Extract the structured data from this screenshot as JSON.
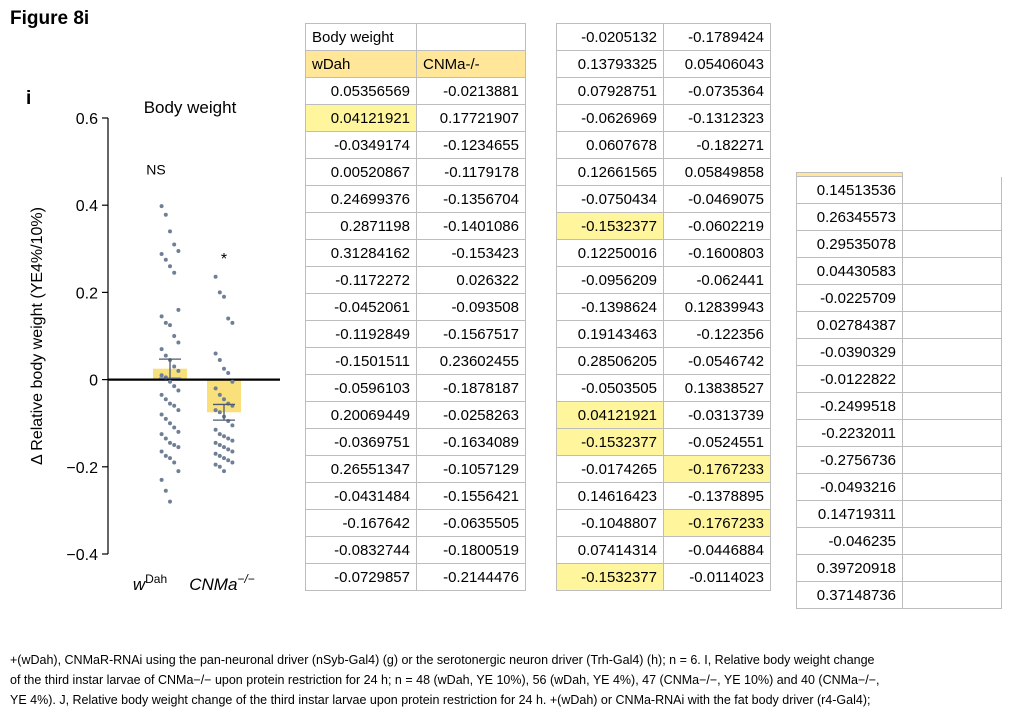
{
  "figure_title": "Figure 8i",
  "chart_data": {
    "type": "bar",
    "panel_label": "i",
    "title": "Body weight",
    "ylabel": "Δ Relative body weight (YE4%/10%)",
    "ylim": [
      -0.4,
      0.6
    ],
    "yticks": [
      "0.6",
      "0.4",
      "0.2",
      "0",
      "−0.2",
      "−0.4"
    ],
    "ytick_values": [
      0.6,
      0.4,
      0.2,
      0,
      -0.2,
      -0.4
    ],
    "categories": [
      "wDah",
      "CNMa−/−"
    ],
    "category_labels": [
      {
        "base": "w",
        "sup": "Dah"
      },
      {
        "base": "CNMa",
        "sup": "−/−"
      }
    ],
    "values": [
      0.025,
      -0.075
    ],
    "sem": [
      0.022,
      0.018
    ],
    "significance": [
      "NS",
      "*"
    ],
    "bar_color": "#f9e07a",
    "dot_color": "#6f7f96",
    "points": [
      [
        0.398,
        0.378,
        0.34,
        0.31,
        0.295,
        0.288,
        0.275,
        0.26,
        0.245,
        0.16,
        0.145,
        0.13,
        0.125,
        0.1,
        0.085,
        0.07,
        0.055,
        0.045,
        0.03,
        0.02,
        0.01,
        0.005,
        -0.005,
        -0.015,
        -0.025,
        -0.035,
        -0.045,
        -0.055,
        -0.06,
        -0.07,
        -0.08,
        -0.09,
        -0.1,
        -0.11,
        -0.12,
        -0.125,
        -0.135,
        -0.145,
        -0.15,
        -0.155,
        -0.165,
        -0.175,
        -0.18,
        -0.19,
        -0.21,
        -0.23,
        -0.255,
        -0.28
      ],
      [
        0.236,
        0.2,
        0.19,
        0.14,
        0.13,
        0.06,
        0.045,
        0.025,
        0.015,
        -0.005,
        -0.02,
        -0.035,
        -0.045,
        -0.055,
        -0.06,
        -0.07,
        -0.075,
        -0.085,
        -0.095,
        -0.105,
        -0.115,
        -0.125,
        -0.13,
        -0.135,
        -0.14,
        -0.145,
        -0.15,
        -0.155,
        -0.16,
        -0.165,
        -0.17,
        -0.175,
        -0.18,
        -0.185,
        -0.19,
        -0.195,
        -0.2,
        -0.21
      ]
    ]
  },
  "table1": {
    "title": "Body weight",
    "headers": [
      "wDah",
      "CNMa-/-"
    ],
    "rows": [
      [
        "0.05356569",
        "-0.0213881"
      ],
      [
        "0.04121921",
        "0.17721907"
      ],
      [
        "-0.0349174",
        "-0.1234655"
      ],
      [
        "0.00520867",
        "-0.1179178"
      ],
      [
        "0.24699376",
        "-0.1356704"
      ],
      [
        "0.2871198",
        "-0.1401086"
      ],
      [
        "0.31284162",
        "-0.153423"
      ],
      [
        "-0.1172272",
        "0.026322"
      ],
      [
        "-0.0452061",
        "-0.093508"
      ],
      [
        "-0.1192849",
        "-0.1567517"
      ],
      [
        "-0.1501511",
        "0.23602455"
      ],
      [
        "-0.0596103",
        "-0.1878187"
      ],
      [
        "0.20069449",
        "-0.0258263"
      ],
      [
        "-0.0369751",
        "-0.1634089"
      ],
      [
        "0.26551347",
        "-0.1057129"
      ],
      [
        "-0.0431484",
        "-0.1556421"
      ],
      [
        "-0.167642",
        "-0.0635505"
      ],
      [
        "-0.0832744",
        "-0.1800519"
      ],
      [
        "-0.0729857",
        "-0.2144476"
      ]
    ]
  },
  "table2": {
    "rows": [
      [
        "-0.0205132",
        "-0.1789424"
      ],
      [
        "0.13793325",
        "0.05406043"
      ],
      [
        "0.07928751",
        "-0.0735364"
      ],
      [
        "-0.0626969",
        "-0.1312323"
      ],
      [
        "0.0607678",
        "-0.182271"
      ],
      [
        "0.12661565",
        "0.05849858"
      ],
      [
        "-0.0750434",
        "-0.0469075"
      ],
      [
        "-0.1532377",
        "-0.0602219"
      ],
      [
        "0.12250016",
        "-0.1600803"
      ],
      [
        "-0.0956209",
        "-0.062441"
      ],
      [
        "-0.1398624",
        "0.12839943"
      ],
      [
        "0.19143463",
        "-0.122356"
      ],
      [
        "0.28506205",
        "-0.0546742"
      ],
      [
        "-0.0503505",
        "0.13838527"
      ],
      [
        "0.04121921",
        "-0.0313739"
      ],
      [
        "-0.1532377",
        "-0.0524551"
      ],
      [
        "-0.0174265",
        "-0.1767233"
      ],
      [
        "0.14616423",
        "-0.1378895"
      ],
      [
        "-0.1048807",
        "-0.1767233"
      ],
      [
        "0.07414314",
        "-0.0446884"
      ],
      [
        "-0.1532377",
        "-0.0114023"
      ]
    ]
  },
  "table3": {
    "rows": [
      "0.14513536",
      "0.26345573",
      "0.29535078",
      "0.04430583",
      "-0.0225709",
      "0.02784387",
      "-0.0390329",
      "-0.0122822",
      "-0.2499518",
      "-0.2232011",
      "-0.2756736",
      "-0.0493216",
      "0.14719311",
      "-0.046235",
      "0.39720918",
      "0.37148736"
    ]
  },
  "highlight_color": "#fff59d",
  "header_color": "#ffe699",
  "caption": {
    "line1": "+(wDah), CNMaR-RNAi using the pan-neuronal driver (nSyb-Gal4) (g) or the serotonergic neuron driver (Trh-Gal4) (h); n = 6. I, Relative body weight change",
    "line2": "of the third instar larvae of CNMa−/− upon protein restriction for 24 h; n = 48 (wDah, YE 10%), 56 (wDah, YE 4%), 47 (CNMa−/−, YE 10%) and 40 (CNMa−/−,",
    "line3": "YE 4%). J, Relative body weight change of the third instar larvae upon protein restriction for 24 h. +(wDah) or CNMa-RNAi with the fat body driver (r4-Gal4);"
  }
}
